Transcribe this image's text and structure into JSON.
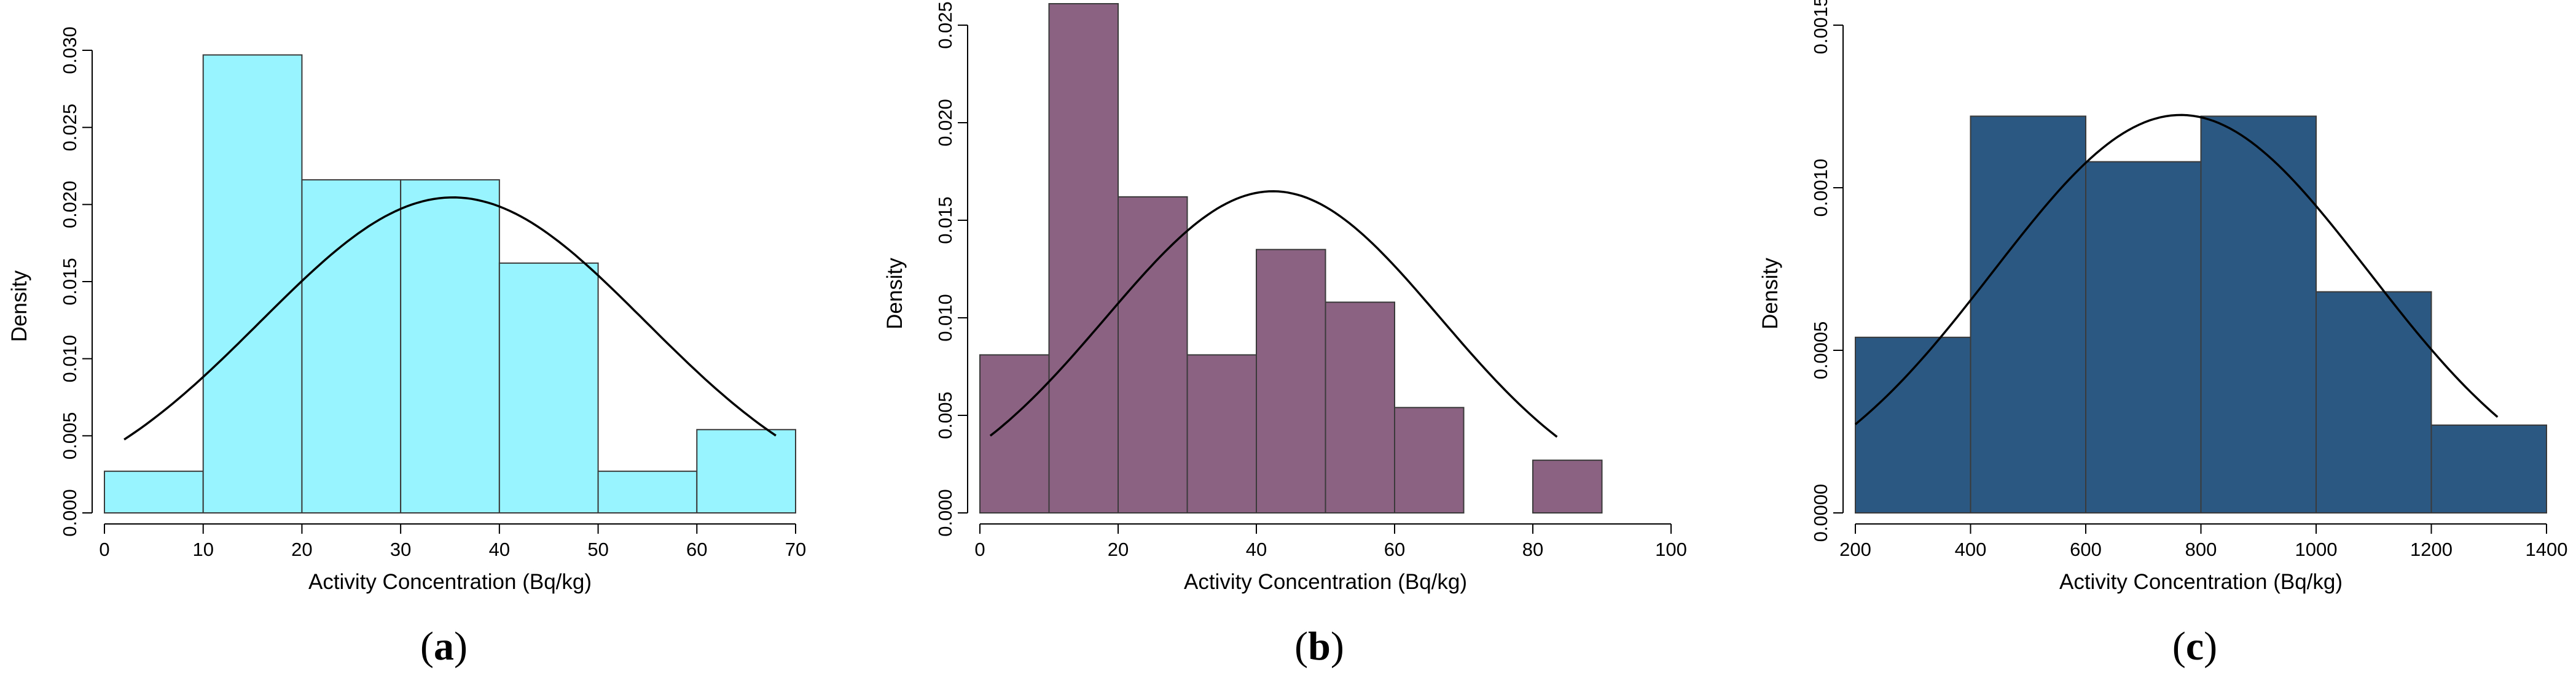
{
  "figure": {
    "panels": [
      "a",
      "b",
      "c"
    ]
  },
  "chart_data": [
    {
      "type": "bar",
      "subtype": "histogram",
      "panel_label": "a",
      "xlabel": "Activity Concentration (Bq/kg)",
      "ylabel": "Density",
      "bin_edges": [
        0,
        10,
        20,
        30,
        40,
        50,
        60,
        70
      ],
      "values": [
        0.0027,
        0.0297,
        0.0216,
        0.0216,
        0.0162,
        0.0027,
        0.0054
      ],
      "xlim": [
        0,
        70
      ],
      "ylim": [
        0,
        0.03
      ],
      "xticks": [
        0,
        10,
        20,
        30,
        40,
        50,
        60,
        70
      ],
      "xtick_labels": [
        "0",
        "10",
        "20",
        "30",
        "40",
        "50",
        "60",
        "70"
      ],
      "yticks": [
        0,
        0.005,
        0.01,
        0.015,
        0.02,
        0.025,
        0.03
      ],
      "ytick_labels": [
        "0.000",
        "0.005",
        "0.010",
        "0.015",
        "0.020",
        "0.025",
        "0.030"
      ],
      "bar_color": "#98F5FF",
      "curve": {
        "type": "normal",
        "mean": 35.3,
        "sd": 19.5,
        "x_range": [
          2,
          68
        ]
      }
    },
    {
      "type": "bar",
      "subtype": "histogram",
      "panel_label": "b",
      "xlabel": "Activity Concentration (Bq/kg)",
      "ylabel": "Density",
      "bin_edges": [
        0,
        10,
        20,
        30,
        40,
        50,
        60,
        70,
        80,
        90
      ],
      "values": [
        0.0081,
        0.0261,
        0.0162,
        0.0081,
        0.0135,
        0.0108,
        0.0054,
        0,
        0.0027
      ],
      "xlim": [
        0,
        100
      ],
      "ylim": [
        0,
        0.025
      ],
      "xticks": [
        0,
        20,
        40,
        60,
        80,
        100
      ],
      "xtick_labels": [
        "0",
        "20",
        "40",
        "60",
        "80",
        "100"
      ],
      "yticks": [
        0,
        0.005,
        0.01,
        0.015,
        0.02,
        0.025
      ],
      "ytick_labels": [
        "0.000",
        "0.005",
        "0.010",
        "0.015",
        "0.020",
        "0.025"
      ],
      "bar_color": "#8B6282",
      "curve": {
        "type": "normal",
        "mean": 42.4,
        "sd": 24.2,
        "x_range": [
          1.5,
          83.5
        ]
      }
    },
    {
      "type": "bar",
      "subtype": "histogram",
      "panel_label": "c",
      "xlabel": "Activity Concentration (Bq/kg)",
      "ylabel": "Density",
      "bin_edges": [
        200,
        400,
        600,
        800,
        1000,
        1200,
        1400
      ],
      "values": [
        0.00054,
        0.00122,
        0.00108,
        0.00122,
        0.00068,
        0.00027
      ],
      "xlim": [
        200,
        1400
      ],
      "ylim": [
        0,
        0.0015
      ],
      "xticks": [
        200,
        400,
        600,
        800,
        1000,
        1200,
        1400
      ],
      "xtick_labels": [
        "200",
        "400",
        "600",
        "800",
        "1000",
        "1200",
        "1400"
      ],
      "yticks": [
        0,
        0.0005,
        0.001,
        0.0015
      ],
      "ytick_labels": [
        "0.0000",
        "0.0005",
        "0.0010",
        "0.0015"
      ],
      "bar_color": "#2B5882",
      "curve": {
        "type": "normal",
        "mean": 765,
        "sd": 326,
        "x_range": [
          200,
          1315
        ]
      }
    }
  ]
}
